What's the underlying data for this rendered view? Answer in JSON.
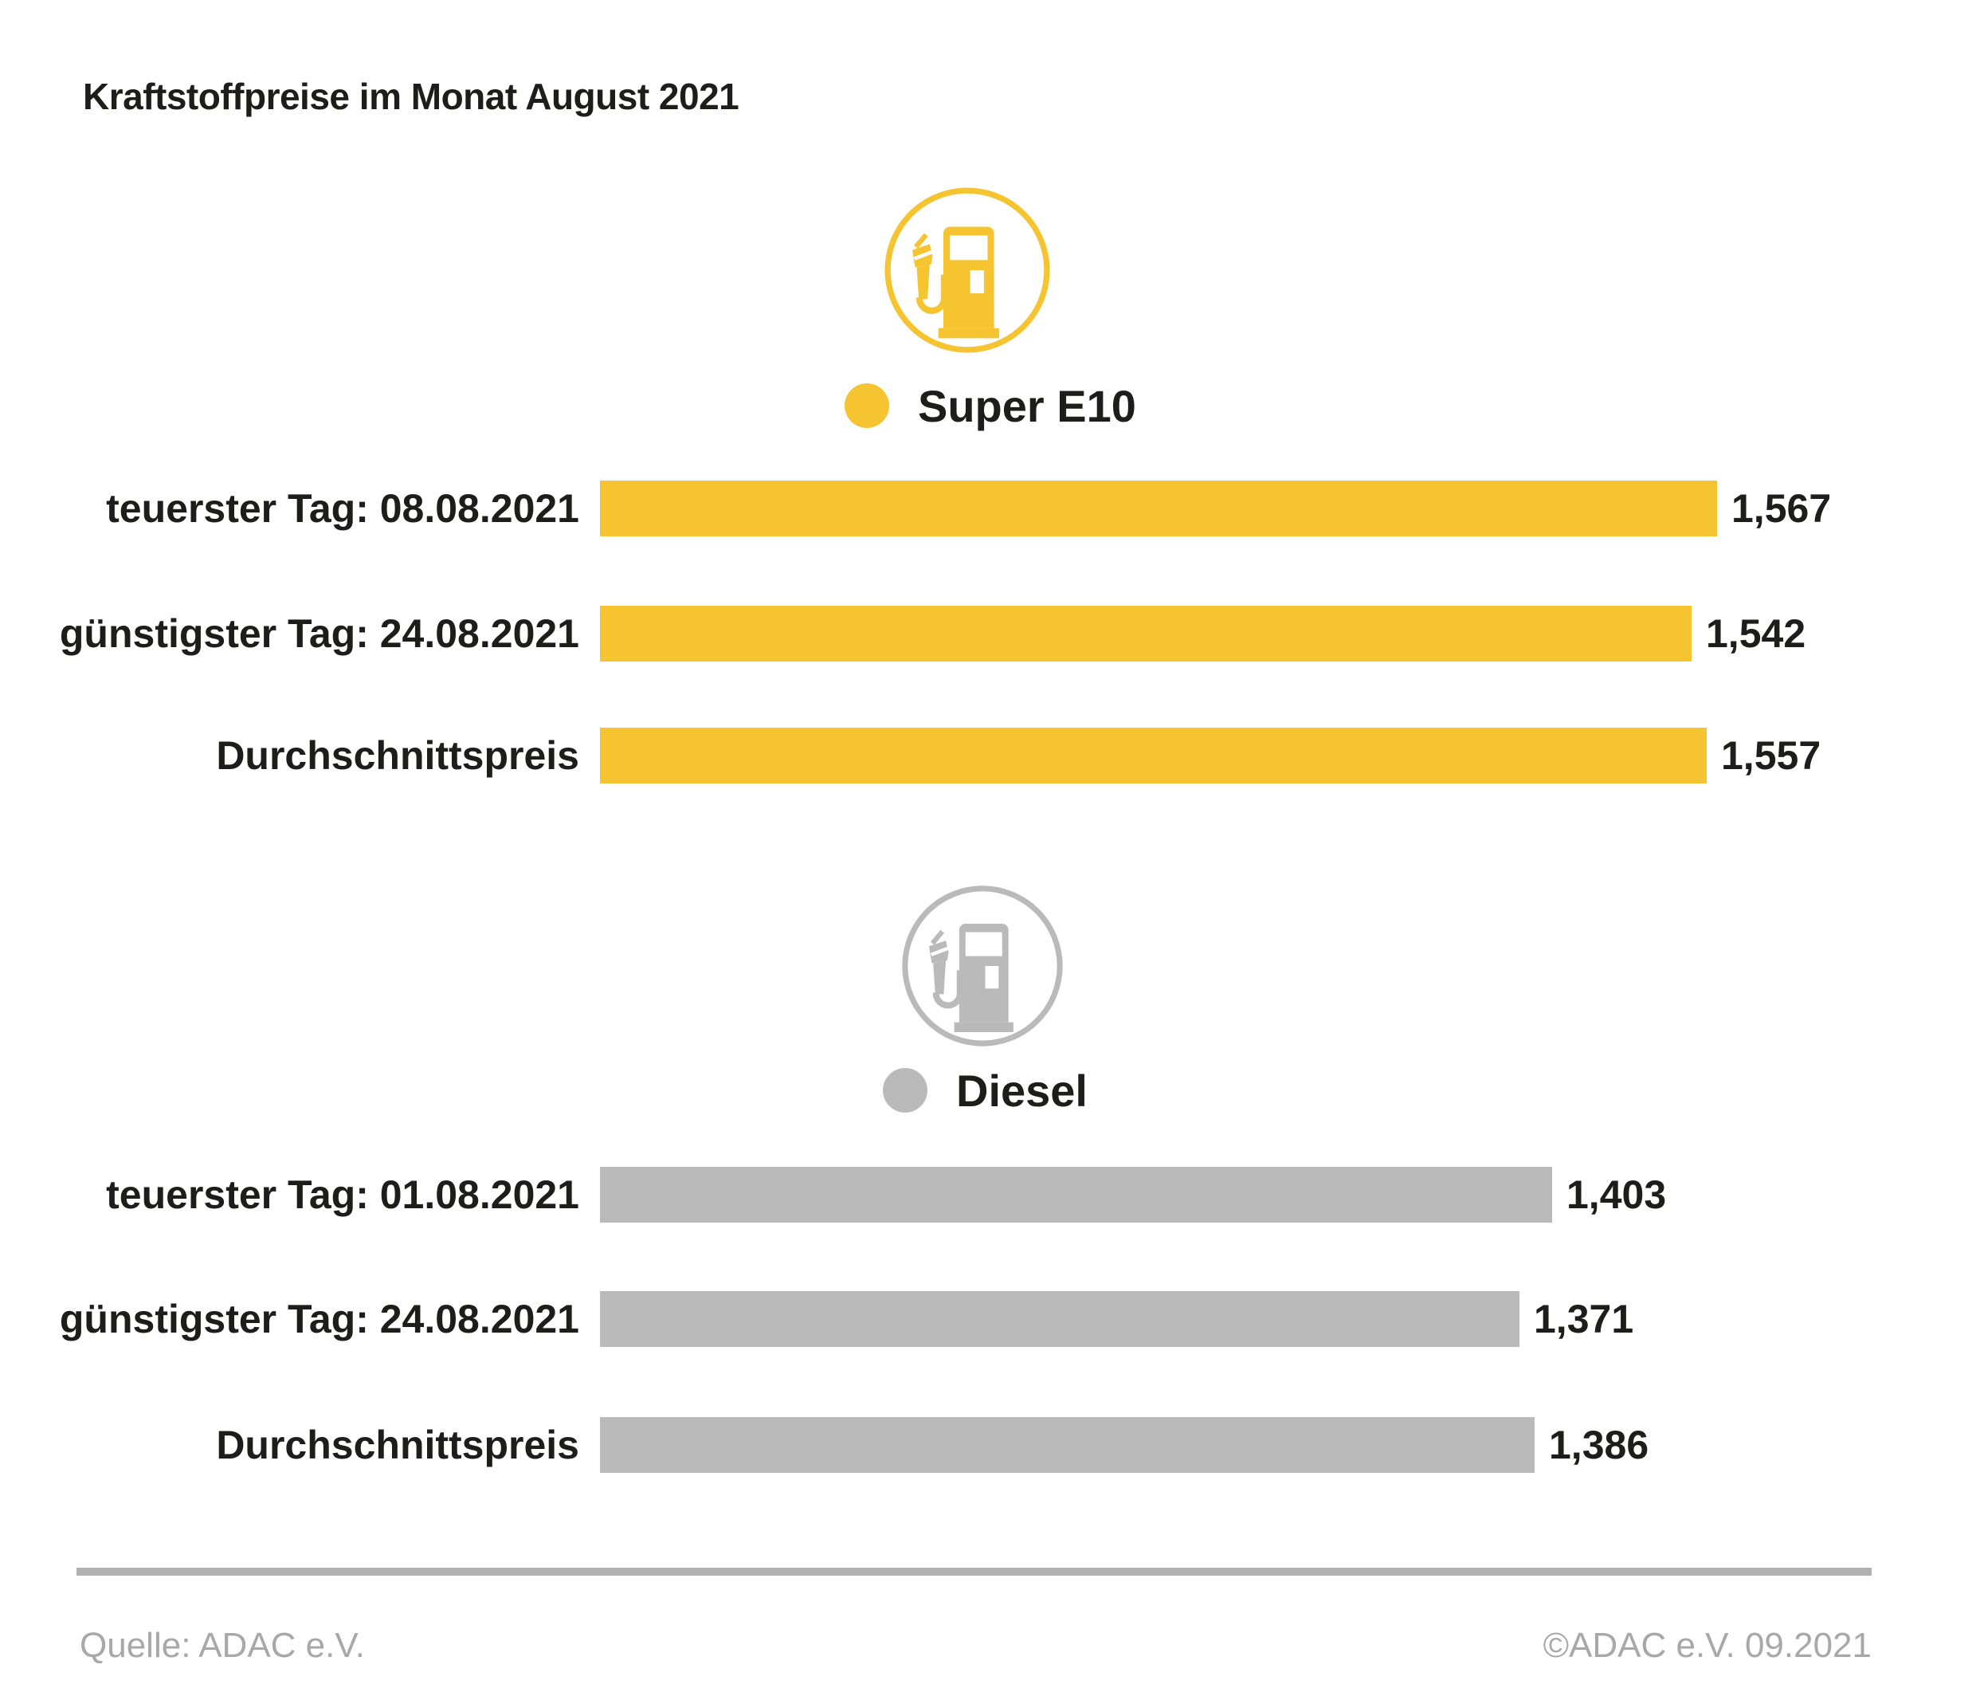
{
  "title": "Kraftstoffpreise im Monat August 2021",
  "colors": {
    "super_e10_yellow": "#F6C431",
    "diesel_gray": "#BABABA",
    "text_dark": "#1D1D1B",
    "footer_gray": "#A8A8A8",
    "rule_gray": "#B1B1B1"
  },
  "chart_data": [
    {
      "type": "bar",
      "orientation": "horizontal",
      "series_name": "Super E10",
      "icon": "fuel-pump-icon",
      "color": "#F6C431",
      "legend_position": "top",
      "grid": false,
      "value_axis_visible": false,
      "categories": [
        "teuerster Tag: 08.08.2021",
        "günstigster Tag: 24.08.2021",
        "Durchschnittspreis"
      ],
      "values": [
        1.567,
        1.542,
        1.557
      ],
      "value_labels": [
        "1,567",
        "1,542",
        "1,557"
      ]
    },
    {
      "type": "bar",
      "orientation": "horizontal",
      "series_name": "Diesel",
      "icon": "fuel-pump-icon",
      "color": "#BABABA",
      "legend_position": "top",
      "grid": false,
      "value_axis_visible": false,
      "categories": [
        "teuerster Tag: 01.08.2021",
        "günstigster Tag: 24.08.2021",
        "Durchschnittspreis"
      ],
      "values": [
        1.403,
        1.371,
        1.386
      ],
      "value_labels": [
        "1,403",
        "1,371",
        "1,386"
      ]
    }
  ],
  "footer": {
    "source": "Quelle: ADAC e.V.",
    "copyright": "©ADAC e.V. 09.2021"
  }
}
